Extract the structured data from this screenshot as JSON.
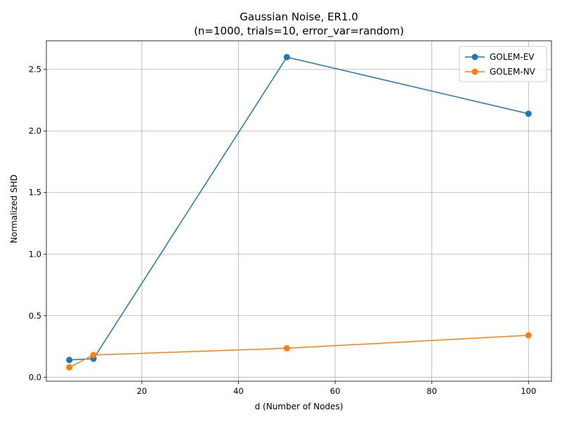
{
  "chart_data": {
    "type": "line",
    "title": "Gaussian Noise, ER1.0",
    "subtitle": "(n=1000, trials=10, error_var=random)",
    "xlabel": "d (Number of Nodes)",
    "ylabel": "Normalized SHD",
    "xlim": [
      0.25,
      104.75
    ],
    "ylim": [
      -0.0326,
      2.7326
    ],
    "xticks": [
      20,
      40,
      60,
      80,
      100
    ],
    "yticks": [
      0.0,
      0.5,
      1.0,
      1.5,
      2.0,
      2.5
    ],
    "xtick_labels": [
      "20",
      "40",
      "60",
      "80",
      "100"
    ],
    "ytick_labels": [
      "0.0",
      "0.5",
      "1.0",
      "1.5",
      "2.0",
      "2.5"
    ],
    "grid": true,
    "legend_position": "top-right",
    "series": [
      {
        "name": "GOLEM-EV",
        "color": "#1f77b4",
        "x": [
          5,
          10,
          50,
          100
        ],
        "y": [
          0.14,
          0.15,
          2.6,
          2.14
        ]
      },
      {
        "name": "GOLEM-NV",
        "color": "#ff7f0e",
        "x": [
          5,
          10,
          50,
          100
        ],
        "y": [
          0.08,
          0.18,
          0.235,
          0.34
        ]
      }
    ]
  }
}
